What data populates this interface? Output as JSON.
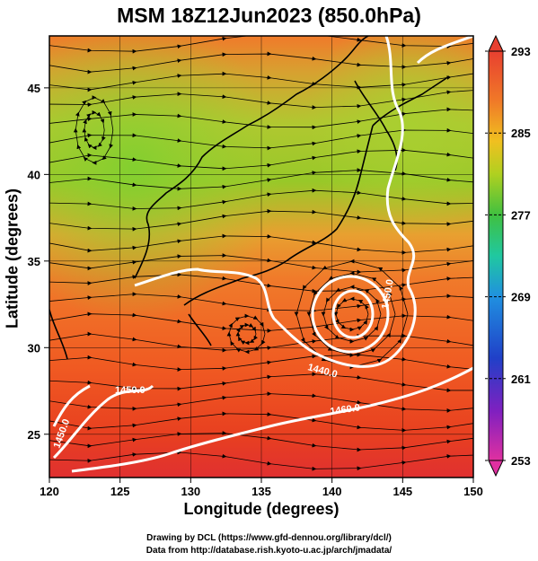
{
  "title": "MSM 18Z12Jun2023 (850.0hPa)",
  "x_axis": {
    "label": "Longitude (degrees)",
    "ticks": [
      "120",
      "125",
      "130",
      "135",
      "140",
      "145",
      "150"
    ],
    "range": [
      120,
      150
    ]
  },
  "y_axis": {
    "label": "Latitude  (degrees)",
    "ticks": [
      "25",
      "30",
      "35",
      "40",
      "45"
    ],
    "range": [
      22.5,
      48
    ]
  },
  "colorbar": {
    "ticks": [
      "293",
      "285",
      "277",
      "269",
      "261",
      "253"
    ],
    "range": [
      253,
      293
    ],
    "colors": [
      "#e8309a",
      "#a020c0",
      "#2030c0",
      "#2a8ae0",
      "#20c8d0",
      "#20c870",
      "#40c030",
      "#a0d020",
      "#f0d010",
      "#f09020",
      "#f04020",
      "#e03030"
    ]
  },
  "contour_labels": [
    "1450.0",
    "1440.0",
    "1450.0",
    "1460.0",
    "1450.0"
  ],
  "credits": {
    "line1": "Drawing by DCL (https://www.gfd-dennou.org/library/dcl/)",
    "line2": "Data from http://database.rish.kyoto-u.ac.jp/arch/jmadata/"
  }
}
